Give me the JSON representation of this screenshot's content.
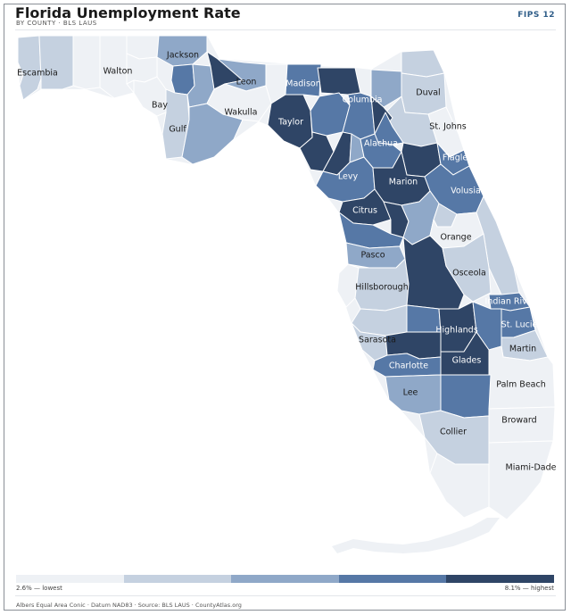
{
  "header": {
    "title": "Florida Unemployment Rate",
    "subtitle": "BY COUNTY · BLS LAUS",
    "fips": "FIPS 12"
  },
  "colors": {
    "c1": "#eef1f5",
    "c2": "#c5d1e0",
    "c3": "#8fa8c8",
    "c4": "#5678a6",
    "c5": "#2f4566",
    "water": "#ffffff",
    "border": "#ffffff"
  },
  "legend": {
    "low_label": "2.6% — lowest",
    "high_label": "8.1% — highest",
    "classes": 5
  },
  "counties": [
    {
      "name": "Escambia",
      "class": 2,
      "labeled": true
    },
    {
      "name": "Santa Rosa",
      "class": 2,
      "labeled": false
    },
    {
      "name": "Okaloosa",
      "class": 1,
      "labeled": false
    },
    {
      "name": "Walton",
      "class": 1,
      "labeled": true
    },
    {
      "name": "Holmes",
      "class": 1,
      "labeled": false
    },
    {
      "name": "Washington",
      "class": 1,
      "labeled": false
    },
    {
      "name": "Bay",
      "class": 1,
      "labeled": true
    },
    {
      "name": "Jackson",
      "class": 3,
      "labeled": true
    },
    {
      "name": "Calhoun",
      "class": 4,
      "labeled": false
    },
    {
      "name": "Gulf",
      "class": 2,
      "labeled": true
    },
    {
      "name": "Liberty",
      "class": 3,
      "labeled": false
    },
    {
      "name": "Gadsden",
      "class": 5,
      "labeled": false
    },
    {
      "name": "Franklin",
      "class": 3,
      "labeled": false
    },
    {
      "name": "Leon",
      "class": 3,
      "labeled": true
    },
    {
      "name": "Wakulla",
      "class": 1,
      "labeled": true
    },
    {
      "name": "Jefferson",
      "class": 1,
      "labeled": false
    },
    {
      "name": "Madison",
      "class": 4,
      "labeled": true
    },
    {
      "name": "Taylor",
      "class": 5,
      "labeled": true
    },
    {
      "name": "Hamilton",
      "class": 5,
      "labeled": false
    },
    {
      "name": "Suwannee",
      "class": 4,
      "labeled": false
    },
    {
      "name": "Columbia",
      "class": 4,
      "labeled": true
    },
    {
      "name": "Lafayette",
      "class": 5,
      "labeled": false
    },
    {
      "name": "Dixie",
      "class": 5,
      "labeled": false
    },
    {
      "name": "Baker",
      "class": 3,
      "labeled": false
    },
    {
      "name": "Nassau",
      "class": 2,
      "labeled": false
    },
    {
      "name": "Duval",
      "class": 2,
      "labeled": true
    },
    {
      "name": "St. Johns",
      "class": 1,
      "labeled": true
    },
    {
      "name": "Clay",
      "class": 2,
      "labeled": false
    },
    {
      "name": "Union",
      "class": 5,
      "labeled": false
    },
    {
      "name": "Bradford",
      "class": 4,
      "labeled": false
    },
    {
      "name": "Gilchrist",
      "class": 3,
      "labeled": false
    },
    {
      "name": "Alachua",
      "class": 4,
      "labeled": true
    },
    {
      "name": "Putnam",
      "class": 5,
      "labeled": false
    },
    {
      "name": "Flagler",
      "class": 4,
      "labeled": true
    },
    {
      "name": "Levy",
      "class": 4,
      "labeled": true
    },
    {
      "name": "Marion",
      "class": 5,
      "labeled": true
    },
    {
      "name": "Volusia",
      "class": 4,
      "labeled": true
    },
    {
      "name": "Citrus",
      "class": 5,
      "labeled": true
    },
    {
      "name": "Sumter",
      "class": 5,
      "labeled": false
    },
    {
      "name": "Lake",
      "class": 3,
      "labeled": false
    },
    {
      "name": "Seminole",
      "class": 2,
      "labeled": false
    },
    {
      "name": "Orange",
      "class": 1,
      "labeled": true
    },
    {
      "name": "Brevard",
      "class": 2,
      "labeled": false
    },
    {
      "name": "Hernando",
      "class": 4,
      "labeled": false
    },
    {
      "name": "Pasco",
      "class": 3,
      "labeled": true
    },
    {
      "name": "Pinellas",
      "class": 1,
      "labeled": false
    },
    {
      "name": "Hillsborough",
      "class": 2,
      "labeled": true
    },
    {
      "name": "Polk",
      "class": 5,
      "labeled": false
    },
    {
      "name": "Osceola",
      "class": 2,
      "labeled": true
    },
    {
      "name": "Indian River",
      "class": 4,
      "labeled": true
    },
    {
      "name": "Manatee",
      "class": 2,
      "labeled": false
    },
    {
      "name": "Hardee",
      "class": 4,
      "labeled": false
    },
    {
      "name": "Highlands",
      "class": 5,
      "labeled": true
    },
    {
      "name": "Okeechobee",
      "class": 4,
      "labeled": false
    },
    {
      "name": "St. Lucie",
      "class": 4,
      "labeled": true
    },
    {
      "name": "Sarasota",
      "class": 2,
      "labeled": true
    },
    {
      "name": "DeSoto",
      "class": 5,
      "labeled": false
    },
    {
      "name": "Martin",
      "class": 2,
      "labeled": true
    },
    {
      "name": "Charlotte",
      "class": 4,
      "labeled": true
    },
    {
      "name": "Glades",
      "class": 5,
      "labeled": true
    },
    {
      "name": "Palm Beach",
      "class": 1,
      "labeled": true
    },
    {
      "name": "Lee",
      "class": 3,
      "labeled": true
    },
    {
      "name": "Hendry",
      "class": 4,
      "labeled": false
    },
    {
      "name": "Broward",
      "class": 1,
      "labeled": true
    },
    {
      "name": "Collier",
      "class": 2,
      "labeled": true
    },
    {
      "name": "Miami-Dade",
      "class": 1,
      "labeled": true
    },
    {
      "name": "Monroe",
      "class": 1,
      "labeled": false
    }
  ],
  "footer": {
    "text": "Albers Equal Area Conic · Datum NAD83 · Source: BLS LAUS · CountyAtlas.org"
  }
}
